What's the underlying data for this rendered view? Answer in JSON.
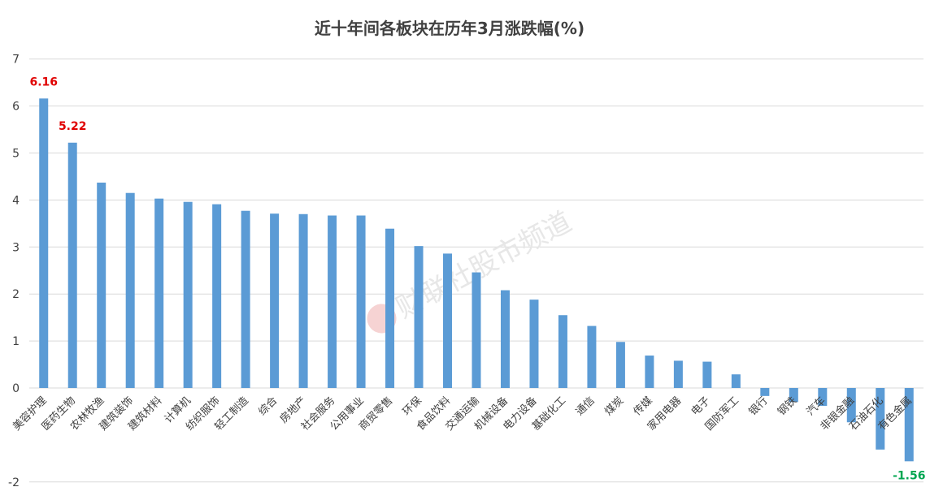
{
  "chart_data": {
    "type": "bar",
    "title": "近十年间各板块在历年3月涨跌幅(%)",
    "xlabel": "",
    "ylabel": "",
    "ylim": [
      -2,
      7
    ],
    "yticks": [
      -2,
      0,
      1,
      2,
      3,
      4,
      5,
      6,
      7
    ],
    "grid": true,
    "legend": "none",
    "bar_color": "#5b9bd5",
    "categories": [
      "美容护理",
      "医药生物",
      "农林牧渔",
      "建筑装饰",
      "建筑材料",
      "计算机",
      "纺织服饰",
      "轻工制造",
      "综合",
      "房地产",
      "社会服务",
      "公用事业",
      "商贸零售",
      "环保",
      "食品饮料",
      "交通运输",
      "机械设备",
      "电力设备",
      "基础化工",
      "通信",
      "煤炭",
      "传媒",
      "家用电器",
      "电子",
      "国防军工",
      "银行",
      "钢铁",
      "汽车",
      "非银金融",
      "石油石化",
      "有色金属"
    ],
    "values": [
      6.16,
      5.22,
      4.37,
      4.15,
      4.03,
      3.96,
      3.91,
      3.77,
      3.71,
      3.7,
      3.67,
      3.67,
      3.39,
      3.02,
      2.86,
      2.46,
      2.08,
      1.88,
      1.55,
      1.32,
      0.98,
      0.69,
      0.58,
      0.56,
      0.29,
      -0.17,
      -0.3,
      -0.38,
      -0.73,
      -1.31,
      -1.56
    ],
    "data_labels": [
      {
        "category": "美容护理",
        "text": "6.16",
        "color": "#e00000"
      },
      {
        "category": "医药生物",
        "text": "5.22",
        "color": "#e00000"
      },
      {
        "category": "有色金属",
        "text": "-1.56",
        "color": "#00a651"
      }
    ],
    "watermark": "财联社股市频道"
  }
}
